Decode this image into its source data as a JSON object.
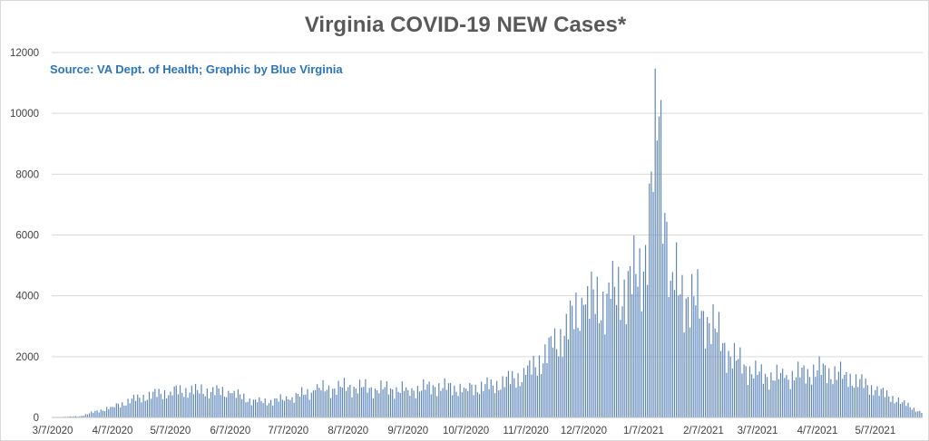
{
  "chart_data": {
    "type": "bar",
    "title": "Virginia COVID-19 NEW Cases*",
    "subtitle": "Source: VA Dept. of Health; Graphic by Blue Virginia",
    "xlabel": "",
    "ylabel": "",
    "ylim": [
      0,
      12000
    ],
    "y_ticks": [
      "0",
      "2000",
      "4000",
      "6000",
      "8000",
      "10000",
      "12000"
    ],
    "x_tick_labels": [
      "3/7/2020",
      "4/7/2020",
      "5/7/2020",
      "6/7/2020",
      "7/7/2020",
      "8/7/2020",
      "9/7/2020",
      "10/7/2020",
      "11/7/2020",
      "12/7/2020",
      "1/7/2021",
      "2/7/2021",
      "3/7/2021",
      "4/7/2021",
      "5/7/2021"
    ],
    "x_start": "2020-03-07",
    "x_end": "2021-05-31",
    "grid": "horizontal",
    "legend": "none",
    "bar_color": "#5b84b9",
    "series": [
      {
        "interval": "monthly (approx. daily level)",
        "x": [
          "2020-03-07",
          "2020-03-21",
          "2020-04-07",
          "2020-04-21",
          "2020-05-07",
          "2020-05-21",
          "2020-06-07",
          "2020-06-21",
          "2020-07-07",
          "2020-07-21",
          "2020-08-07",
          "2020-08-21",
          "2020-09-07",
          "2020-09-21",
          "2020-10-07",
          "2020-10-21",
          "2020-11-07",
          "2020-11-21",
          "2020-12-07",
          "2020-12-21",
          "2021-01-07",
          "2021-01-15",
          "2021-01-21",
          "2021-02-07",
          "2021-02-21",
          "2021-03-07",
          "2021-03-21",
          "2021-04-07",
          "2021-04-21",
          "2021-05-07",
          "2021-05-21",
          "2021-05-31"
        ],
        "values": [
          5,
          40,
          350,
          650,
          850,
          900,
          800,
          500,
          600,
          900,
          1000,
          950,
          900,
          1000,
          950,
          1050,
          1400,
          2300,
          3700,
          3900,
          4800,
          9900,
          4500,
          3500,
          2000,
          1400,
          1300,
          1550,
          1400,
          900,
          500,
          150
        ]
      }
    ]
  }
}
